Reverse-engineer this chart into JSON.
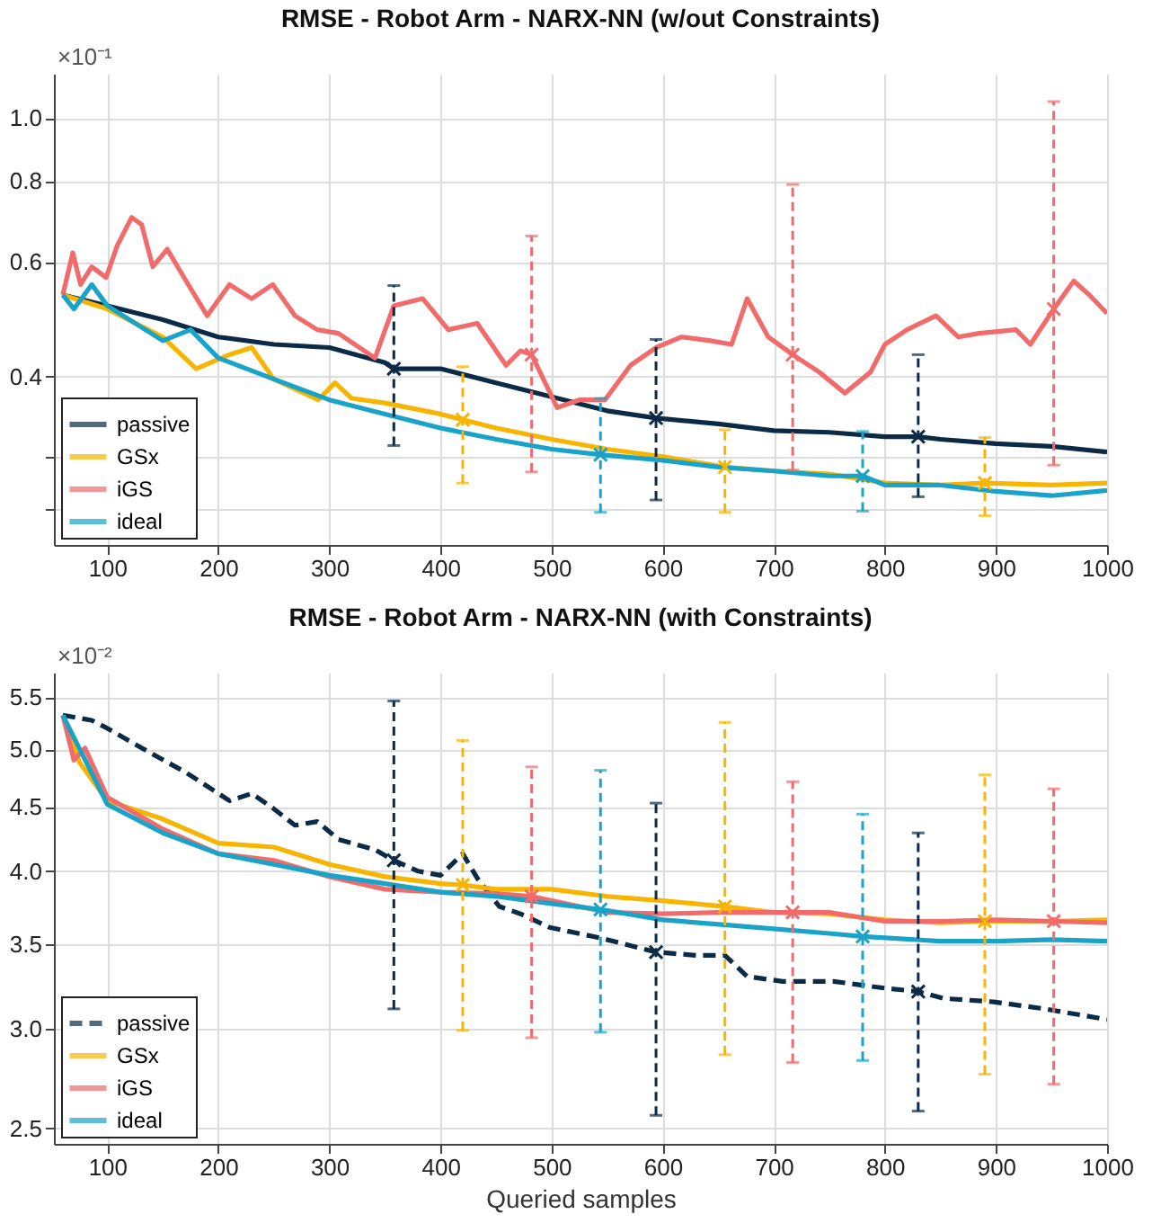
{
  "chart_data": [
    {
      "type": "line",
      "title": "RMSE - Robot Arm - NARX-NN (w/out Constraints)",
      "annotations": [
        "×10⁻¹"
      ],
      "log": "y",
      "grid": true,
      "legend": "bottom left",
      "xlim": [
        52,
        1000
      ],
      "xticks": [
        100,
        200,
        300,
        400,
        500,
        600,
        700,
        800,
        900,
        1000
      ],
      "ylim": [
        0.22,
        1.17
      ],
      "yticks": [
        {
          "value": 0.25,
          "label": null
        },
        {
          "value": 0.3,
          "label": null
        },
        0.4,
        0.6,
        0.8,
        {
          "value": 1,
          "label": "1.0"
        }
      ],
      "series": [
        {
          "name": "passive",
          "color": "#0b2a45",
          "x": [
            60,
            100,
            150,
            200,
            250,
            300,
            350,
            358,
            400,
            450,
            500,
            550,
            594,
            650,
            700,
            750,
            800,
            830,
            850,
            900,
            950,
            1000
          ],
          "values": [
            0.534,
            0.514,
            0.489,
            0.46,
            0.448,
            0.443,
            0.42,
            0.411,
            0.411,
            0.391,
            0.372,
            0.354,
            0.345,
            0.338,
            0.33,
            0.328,
            0.323,
            0.323,
            0.32,
            0.315,
            0.312,
            0.306
          ],
          "errors": [
            null,
            null,
            null,
            null,
            null,
            null,
            null,
            [
              0.313,
              0.552
            ],
            null,
            null,
            null,
            null,
            [
              0.258,
              0.456
            ],
            null,
            null,
            null,
            null,
            [
              0.261,
              0.432
            ],
            null,
            null,
            null,
            null
          ]
        },
        {
          "name": "GSx",
          "color": "#f7b500",
          "x": [
            60,
            100,
            150,
            180,
            210,
            230,
            250,
            290,
            305,
            320,
            350,
            400,
            420,
            450,
            500,
            550,
            600,
            656,
            700,
            750,
            800,
            850,
            890,
            950,
            1000
          ],
          "values": [
            0.534,
            0.508,
            0.46,
            0.411,
            0.432,
            0.443,
            0.396,
            0.368,
            0.391,
            0.37,
            0.364,
            0.35,
            0.343,
            0.333,
            0.32,
            0.309,
            0.301,
            0.29,
            0.286,
            0.283,
            0.274,
            0.272,
            0.274,
            0.272,
            0.274
          ],
          "errors": [
            null,
            null,
            null,
            null,
            null,
            null,
            null,
            null,
            null,
            null,
            null,
            null,
            [
              0.274,
              0.414
            ],
            null,
            null,
            null,
            null,
            [
              0.247,
              0.331
            ],
            null,
            null,
            null,
            null,
            [
              0.244,
              0.322
            ],
            null,
            null
          ]
        },
        {
          "name": "iGS",
          "color": "#f26b6b",
          "x": [
            60,
            69,
            76,
            86,
            99,
            109,
            122,
            131,
            141,
            154,
            171,
            190,
            210,
            230,
            249,
            269,
            289,
            308,
            341,
            358,
            384,
            407,
            433,
            459,
            472,
            482,
            505,
            525,
            548,
            571,
            594,
            617,
            643,
            662,
            676,
            695,
            717,
            741,
            764,
            787,
            800,
            820,
            846,
            866,
            885,
            918,
            931,
            952,
            970,
            984,
            1000
          ],
          "values": [
            0.534,
            0.62,
            0.554,
            0.59,
            0.568,
            0.636,
            0.703,
            0.685,
            0.59,
            0.628,
            0.561,
            0.496,
            0.554,
            0.527,
            0.554,
            0.496,
            0.472,
            0.466,
            0.427,
            0.514,
            0.527,
            0.472,
            0.483,
            0.416,
            0.438,
            0.432,
            0.358,
            0.368,
            0.368,
            0.416,
            0.443,
            0.46,
            0.454,
            0.448,
            0.527,
            0.46,
            0.432,
            0.406,
            0.377,
            0.406,
            0.448,
            0.472,
            0.496,
            0.46,
            0.466,
            0.472,
            0.448,
            0.508,
            0.561,
            0.534,
            0.5
          ],
          "errors": [
            null,
            null,
            null,
            null,
            null,
            null,
            null,
            null,
            null,
            null,
            null,
            null,
            null,
            null,
            null,
            null,
            null,
            null,
            null,
            null,
            null,
            null,
            null,
            null,
            null,
            [
              0.285,
              0.658
            ],
            null,
            null,
            null,
            null,
            null,
            null,
            null,
            null,
            null,
            null,
            [
              0.287,
              0.79
            ],
            null,
            null,
            null,
            null,
            null,
            null,
            null,
            null,
            null,
            null,
            [
              0.292,
              1.06
            ],
            null,
            null,
            null
          ]
        },
        {
          "name": "ideal",
          "color": "#1aa3c8",
          "x": [
            60,
            70,
            86,
            100,
            150,
            175,
            200,
            250,
            300,
            350,
            400,
            450,
            500,
            544,
            600,
            650,
            700,
            750,
            780,
            800,
            850,
            900,
            950,
            1000
          ],
          "values": [
            0.534,
            0.508,
            0.554,
            0.514,
            0.454,
            0.472,
            0.427,
            0.396,
            0.368,
            0.35,
            0.333,
            0.32,
            0.309,
            0.303,
            0.297,
            0.29,
            0.286,
            0.281,
            0.281,
            0.272,
            0.272,
            0.266,
            0.262,
            0.267
          ],
          "errors": [
            null,
            null,
            null,
            null,
            null,
            null,
            null,
            null,
            null,
            null,
            null,
            null,
            null,
            [
              0.247,
              0.37
            ],
            null,
            null,
            null,
            null,
            [
              0.248,
              0.329
            ],
            null,
            null,
            null,
            null,
            null
          ]
        }
      ]
    },
    {
      "type": "line",
      "title": "RMSE - Robot Arm - NARX-NN (with Constraints)",
      "xlabel": "Queried samples",
      "annotations": [
        "×10⁻²"
      ],
      "log": "y",
      "grid": true,
      "legend": "bottom left",
      "xlim": [
        52,
        1000
      ],
      "xticks": [
        100,
        200,
        300,
        400,
        500,
        600,
        700,
        800,
        900,
        1000
      ],
      "ylim": [
        2.43,
        5.75
      ],
      "yticks": [
        2.5,
        {
          "value": 3,
          "label": "3.0"
        },
        3.5,
        {
          "value": 4,
          "label": "4.0"
        },
        4.5,
        {
          "value": 5,
          "label": "5.0"
        },
        5.5
      ],
      "series": [
        {
          "name": "passive",
          "color": "#0b2a45",
          "line_style": "dashed",
          "x": [
            60,
            86,
            99,
            131,
            171,
            210,
            230,
            249,
            269,
            289,
            308,
            341,
            358,
            380,
            400,
            420,
            433,
            453,
            472,
            498,
            544,
            594,
            630,
            656,
            676,
            708,
            754,
            800,
            830,
            853,
            898,
            944,
            1000
          ],
          "values": [
            5.32,
            5.27,
            5.2,
            5.01,
            4.79,
            4.55,
            4.61,
            4.49,
            4.35,
            4.38,
            4.24,
            4.16,
            4.08,
            4,
            3.97,
            4.13,
            3.95,
            3.75,
            3.7,
            3.61,
            3.54,
            3.45,
            3.43,
            3.43,
            3.3,
            3.27,
            3.27,
            3.23,
            3.21,
            3.17,
            3.15,
            3.11,
            3.05
          ],
          "errors": [
            null,
            null,
            null,
            null,
            null,
            null,
            null,
            null,
            null,
            null,
            null,
            null,
            [
              3.11,
              5.46
            ],
            null,
            null,
            null,
            null,
            null,
            null,
            null,
            null,
            [
              2.56,
              4.53
            ],
            null,
            null,
            null,
            null,
            null,
            null,
            [
              2.58,
              4.29
            ],
            null,
            null,
            null,
            null
          ]
        },
        {
          "name": "GSx",
          "color": "#f7b500",
          "line_style": "solid",
          "x": [
            60,
            75,
            100,
            150,
            200,
            250,
            300,
            350,
            400,
            420,
            450,
            500,
            550,
            600,
            656,
            700,
            750,
            800,
            850,
            890,
            950,
            1000
          ],
          "values": [
            5.32,
            4.88,
            4.55,
            4.4,
            4.21,
            4.18,
            4.05,
            3.96,
            3.91,
            3.9,
            3.87,
            3.87,
            3.82,
            3.79,
            3.75,
            3.71,
            3.7,
            3.66,
            3.64,
            3.65,
            3.65,
            3.66
          ],
          "errors": [
            null,
            null,
            null,
            null,
            null,
            null,
            null,
            null,
            null,
            [
              2.99,
              5.08
            ],
            null,
            null,
            null,
            null,
            [
              2.86,
              5.25
            ],
            null,
            null,
            null,
            null,
            [
              2.76,
              4.77
            ],
            null,
            null
          ]
        },
        {
          "name": "iGS",
          "color": "#f26b6b",
          "line_style": "solid",
          "x": [
            60,
            70,
            80,
            100,
            150,
            200,
            250,
            300,
            350,
            400,
            450,
            482,
            550,
            600,
            650,
            717,
            750,
            800,
            850,
            900,
            952,
            1000
          ],
          "values": [
            5.32,
            4.9,
            5.01,
            4.58,
            4.32,
            4.13,
            4.08,
            3.96,
            3.87,
            3.85,
            3.84,
            3.82,
            3.71,
            3.7,
            3.71,
            3.71,
            3.71,
            3.65,
            3.65,
            3.66,
            3.65,
            3.64
          ],
          "errors": [
            null,
            null,
            null,
            null,
            null,
            null,
            null,
            null,
            null,
            null,
            null,
            [
              2.95,
              4.84
            ],
            null,
            null,
            null,
            [
              2.82,
              4.71
            ],
            null,
            null,
            null,
            null,
            [
              2.71,
              4.65
            ],
            null
          ]
        },
        {
          "name": "ideal",
          "color": "#1aa3c8",
          "line_style": "solid",
          "x": [
            60,
            100,
            150,
            200,
            250,
            300,
            350,
            400,
            450,
            500,
            544,
            600,
            650,
            700,
            750,
            780,
            850,
            900,
            950,
            1000
          ],
          "values": [
            5.32,
            4.52,
            4.29,
            4.13,
            4.05,
            3.97,
            3.91,
            3.85,
            3.82,
            3.77,
            3.73,
            3.66,
            3.63,
            3.6,
            3.57,
            3.55,
            3.52,
            3.52,
            3.53,
            3.52
          ],
          "errors": [
            null,
            null,
            null,
            null,
            null,
            null,
            null,
            null,
            null,
            null,
            [
              2.98,
              4.81
            ],
            null,
            null,
            null,
            null,
            [
              2.83,
              4.44
            ],
            null,
            null,
            null,
            null
          ]
        }
      ]
    }
  ]
}
